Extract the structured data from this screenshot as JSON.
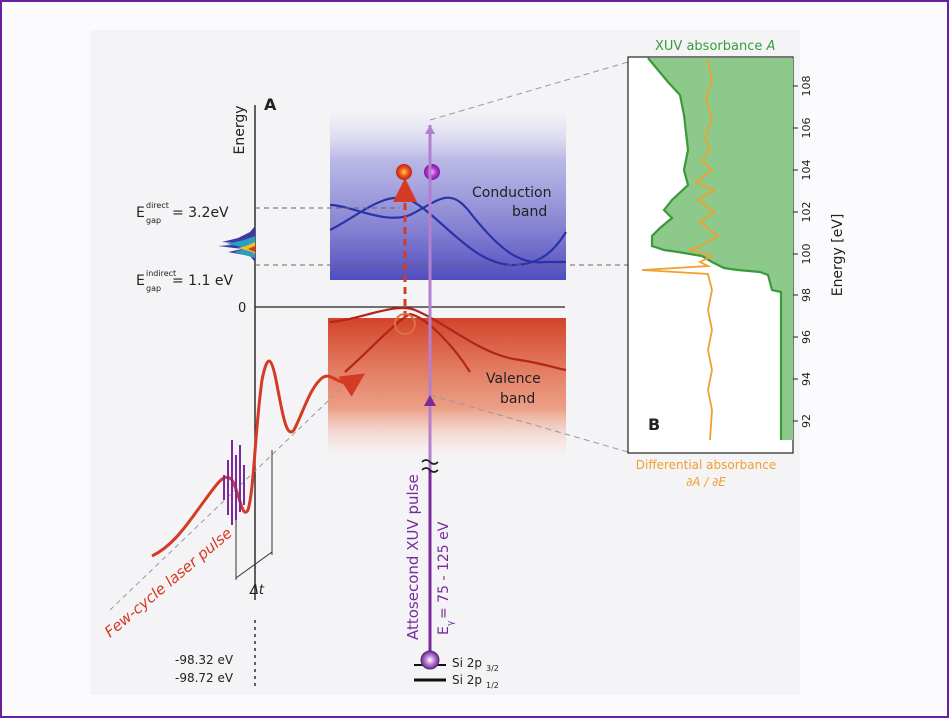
{
  "panel_a": {
    "label": "A",
    "energy_axis_label": "Energy",
    "zero_label": "0",
    "gap_direct": {
      "E": "E",
      "sup": "direct",
      "sub": "gap",
      "value": "= 3.2eV"
    },
    "gap_indirect": {
      "E": "E",
      "sup": "indirect",
      "sub": "gap",
      "value": "= 1.1 eV"
    },
    "conduction_band_line1": "Conduction",
    "conduction_band_line2": "band",
    "valence_band_line1": "Valence",
    "valence_band_line2": "band",
    "laser_pulse_label": "Few-cycle laser pulse",
    "delay_label": "Δt",
    "xuv_pulse_label": "Attosecond XUV pulse",
    "xuv_energy": {
      "E": "E",
      "sub": "γ",
      "value": " = 75 - 125 eV"
    },
    "core_levels": [
      {
        "energy": "-98.32 eV",
        "name": "Si 2p",
        "sub": "3/2"
      },
      {
        "energy": "-98.72 eV",
        "name": "Si 2p",
        "sub": "1/2"
      }
    ]
  },
  "panel_b": {
    "label": "B",
    "top_label": "XUV absorbance ",
    "top_label_italic": "A",
    "bottom_label_line1": "Differential absorbance",
    "bottom_label_line2": "∂A / ∂E",
    "axis_label": "Energy [eV]",
    "ticks": [
      "92",
      "94",
      "96",
      "98",
      "100",
      "102",
      "104",
      "106",
      "108"
    ],
    "colors": {
      "absorbance": "#3a9a3a",
      "fill": "#8cc98a",
      "differential": "#f0a030"
    }
  }
}
